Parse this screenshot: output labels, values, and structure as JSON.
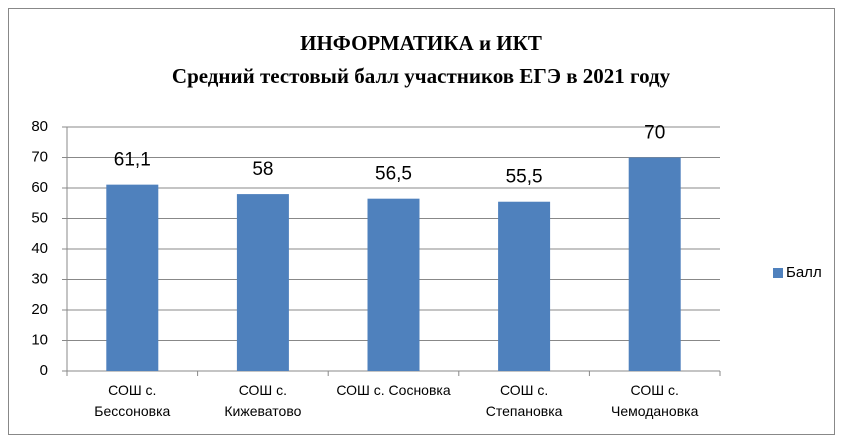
{
  "chart_data": {
    "type": "bar",
    "title": "ИНФОРМАТИКА и ИКТ",
    "subtitle": "Средний тестовый балл участников ЕГЭ в 2021 году",
    "categories": [
      "СОШ с. Бессоновка",
      "СОШ с. Кижеватово",
      "СОШ с. Сосновка",
      "СОШ с. Степановка",
      "СОШ с. Чемодановка"
    ],
    "series": [
      {
        "name": "Балл",
        "color": "#4f81bd",
        "values": [
          61.1,
          58,
          56.5,
          55.5,
          70
        ],
        "value_labels": [
          "61,1",
          "58",
          "56,5",
          "55,5",
          "70"
        ]
      }
    ],
    "ylim": [
      0,
      80
    ],
    "yticks": [
      0,
      10,
      20,
      30,
      40,
      50,
      60,
      70,
      80
    ],
    "grid": true,
    "legend": "right"
  }
}
